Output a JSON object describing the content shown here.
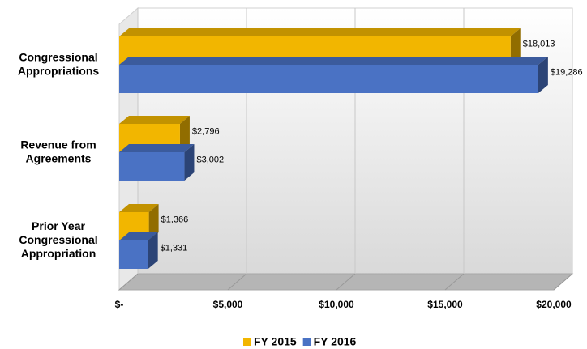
{
  "chart_data": {
    "type": "bar3d_horizontal",
    "categories": [
      [
        "Congressional",
        "Appropriations"
      ],
      [
        "Revenue from",
        "Agreements"
      ],
      [
        "Prior Year",
        "Congressional",
        "Appropriation"
      ]
    ],
    "series": [
      {
        "name": "FY 2015",
        "color": "#f2b600",
        "values": [
          18013,
          2796,
          1366
        ],
        "value_labels": [
          "$18,013",
          "$2,796",
          "$1,366"
        ]
      },
      {
        "name": "FY 2016",
        "color": "#4a72c4",
        "values": [
          19286,
          3002,
          1331
        ],
        "value_labels": [
          "$19,286",
          "$3,002",
          "$1,331"
        ]
      }
    ],
    "xlim": [
      0,
      20000
    ],
    "xticks": [
      {
        "value": 0,
        "label": "$-"
      },
      {
        "value": 5000,
        "label": "$5,000"
      },
      {
        "value": 10000,
        "label": "$10,000"
      },
      {
        "value": 15000,
        "label": "$15,000"
      },
      {
        "value": 20000,
        "label": "$20,000"
      }
    ],
    "grid": true,
    "legend": "bottom"
  }
}
